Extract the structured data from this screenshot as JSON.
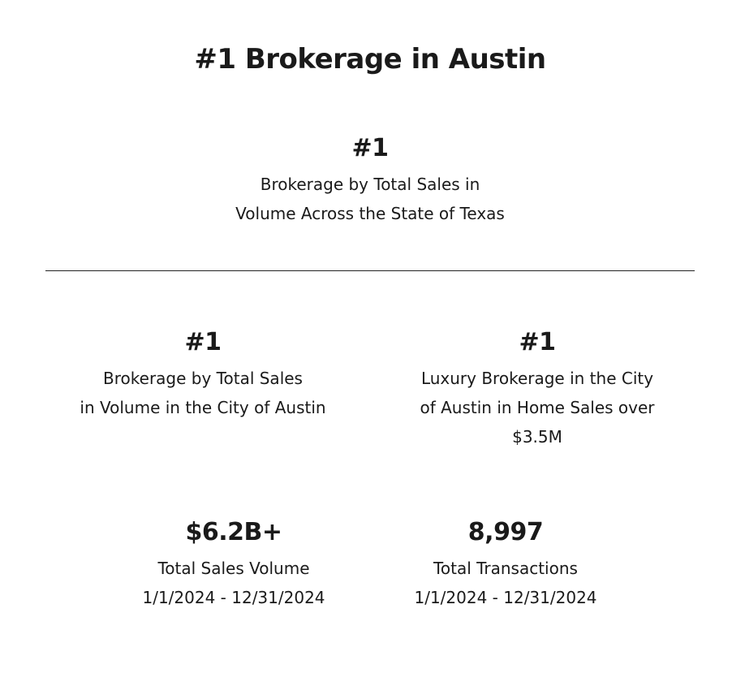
{
  "header": {
    "title": "#1 Brokerage in Austin"
  },
  "stats": {
    "top": {
      "value": "#1",
      "lines": [
        "Brokerage by Total Sales in",
        "Volume Across the State of Texas"
      ]
    },
    "mid_left": {
      "value": "#1",
      "lines": [
        "Brokerage by Total Sales",
        "in Volume in the City of Austin"
      ]
    },
    "mid_right": {
      "value": "#1",
      "lines": [
        "Luxury Brokerage in the City",
        "of Austin in Home Sales over",
        "$3.5M"
      ]
    },
    "bottom_left": {
      "value": "$6.2B+",
      "lines": [
        "Total Sales Volume",
        "1/1/2024 - 12/31/2024"
      ]
    },
    "bottom_right": {
      "value": "8,997",
      "lines": [
        "Total Transactions",
        "1/1/2024 - 12/31/2024"
      ]
    }
  }
}
